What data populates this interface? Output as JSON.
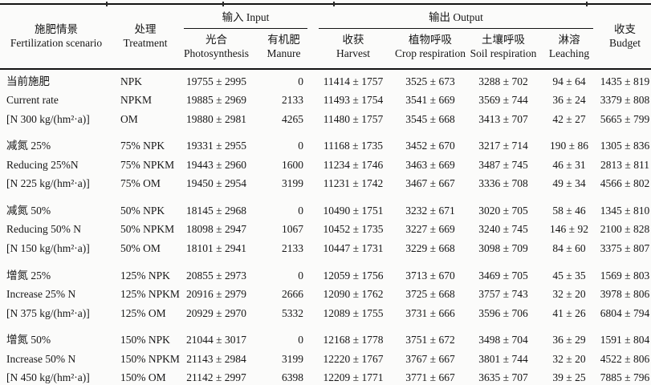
{
  "table": {
    "header": {
      "scenario": {
        "zh": "施肥情景",
        "en": "Fertilization scenario"
      },
      "treatment": {
        "zh": "处理",
        "en": "Treatment"
      },
      "input_group": "输入 Input",
      "output_group": "输出 Output",
      "budget": {
        "zh": "收支",
        "en": "Budget"
      },
      "subcolumns": [
        {
          "zh": "光合",
          "en": "Photosynthesis"
        },
        {
          "zh": "有机肥",
          "en": "Manure"
        },
        {
          "zh": "收获",
          "en": "Harvest"
        },
        {
          "zh": "植物呼吸",
          "en": "Crop respiration"
        },
        {
          "zh": "土壤呼吸",
          "en": "Soil respiration"
        },
        {
          "zh": "淋溶",
          "en": "Leaching"
        }
      ]
    },
    "groups": [
      {
        "scenario_lines": [
          "当前施肥",
          "Current rate",
          "[N 300 kg/(hm²·a)]"
        ],
        "rows": [
          {
            "treatment": "NPK",
            "photosynthesis": "19755 ± 2995",
            "manure": "0",
            "harvest": "11414 ± 1757",
            "crop_respiration": "3525 ± 673",
            "soil_respiration": "3288 ± 702",
            "leaching": "94 ± 64",
            "budget": "1435 ± 819"
          },
          {
            "treatment": "NPKM",
            "photosynthesis": "19885 ± 2969",
            "manure": "2133",
            "harvest": "11493 ± 1754",
            "crop_respiration": "3541 ± 669",
            "soil_respiration": "3569 ± 744",
            "leaching": "36 ± 24",
            "budget": "3379 ± 808"
          },
          {
            "treatment": "OM",
            "photosynthesis": "19880 ± 2981",
            "manure": "4265",
            "harvest": "11480 ± 1757",
            "crop_respiration": "3545 ± 668",
            "soil_respiration": "3413 ± 707",
            "leaching": "42 ± 27",
            "budget": "5665 ± 799"
          }
        ]
      },
      {
        "scenario_lines": [
          "减氮 25%",
          "Reducing 25%N",
          "[N 225 kg/(hm²·a)]"
        ],
        "rows": [
          {
            "treatment": "75% NPK",
            "photosynthesis": "19331 ± 2955",
            "manure": "0",
            "harvest": "11168 ± 1735",
            "crop_respiration": "3452 ± 670",
            "soil_respiration": "3217 ± 714",
            "leaching": "190 ± 86",
            "budget": "1305 ± 836"
          },
          {
            "treatment": "75% NPKM",
            "photosynthesis": "19443 ± 2960",
            "manure": "1600",
            "harvest": "11234 ± 1746",
            "crop_respiration": "3463 ± 669",
            "soil_respiration": "3487 ± 745",
            "leaching": "46 ± 31",
            "budget": "2813 ± 811"
          },
          {
            "treatment": "75% OM",
            "photosynthesis": "19450 ± 2954",
            "manure": "3199",
            "harvest": "11231 ± 1742",
            "crop_respiration": "3467 ± 667",
            "soil_respiration": "3336 ± 708",
            "leaching": "49 ± 34",
            "budget": "4566 ± 802"
          }
        ]
      },
      {
        "scenario_lines": [
          "减氮 50%",
          "Reducing 50% N",
          "[N 150 kg/(hm²·a)]"
        ],
        "rows": [
          {
            "treatment": "50% NPK",
            "photosynthesis": "18145 ± 2968",
            "manure": "0",
            "harvest": "10490 ± 1751",
            "crop_respiration": "3232 ± 671",
            "soil_respiration": "3020 ± 705",
            "leaching": "58 ± 46",
            "budget": "1345 ± 810"
          },
          {
            "treatment": "50% NPKM",
            "photosynthesis": "18098 ± 2947",
            "manure": "1067",
            "harvest": "10452 ± 1735",
            "crop_respiration": "3227 ± 669",
            "soil_respiration": "3240 ± 745",
            "leaching": "146 ± 92",
            "budget": "2100 ± 828"
          },
          {
            "treatment": "50% OM",
            "photosynthesis": "18101 ± 2941",
            "manure": "2133",
            "harvest": "10447 ± 1731",
            "crop_respiration": "3229 ± 668",
            "soil_respiration": "3098 ± 709",
            "leaching": "84 ± 60",
            "budget": "3375 ± 807"
          }
        ]
      },
      {
        "scenario_lines": [
          "增氮 25%",
          "Increase 25% N",
          "[N 375 kg/(hm²·a)]"
        ],
        "rows": [
          {
            "treatment": "125% NPK",
            "photosynthesis": "20855 ± 2973",
            "manure": "0",
            "harvest": "12059 ± 1756",
            "crop_respiration": "3713 ± 670",
            "soil_respiration": "3469 ± 705",
            "leaching": "45 ± 35",
            "budget": "1569 ± 803"
          },
          {
            "treatment": "125% NPKM",
            "photosynthesis": "20916 ± 2979",
            "manure": "2666",
            "harvest": "12090 ± 1762",
            "crop_respiration": "3725 ± 668",
            "soil_respiration": "3757 ± 743",
            "leaching": "32 ± 20",
            "budget": "3978 ± 806"
          },
          {
            "treatment": "125% OM",
            "photosynthesis": "20929 ± 2970",
            "manure": "5332",
            "harvest": "12089 ± 1755",
            "crop_respiration": "3731 ± 666",
            "soil_respiration": "3596 ± 706",
            "leaching": "41 ± 26",
            "budget": "6804 ± 794"
          }
        ]
      },
      {
        "scenario_lines": [
          "增氮 50%",
          "Increase 50% N",
          "[N 450 kg/(hm²·a)]"
        ],
        "rows": [
          {
            "treatment": "150% NPK",
            "photosynthesis": "21044 ± 3017",
            "manure": "0",
            "harvest": "12168 ± 1778",
            "crop_respiration": "3751 ± 672",
            "soil_respiration": "3498 ± 704",
            "leaching": "36 ± 29",
            "budget": "1591 ± 804"
          },
          {
            "treatment": "150% NPKM",
            "photosynthesis": "21143 ± 2984",
            "manure": "3199",
            "harvest": "12220 ± 1767",
            "crop_respiration": "3767 ± 667",
            "soil_respiration": "3801 ± 744",
            "leaching": "32 ± 20",
            "budget": "4522 ± 806"
          },
          {
            "treatment": "150% OM",
            "photosynthesis": "21142 ± 2997",
            "manure": "6398",
            "harvest": "12209 ± 1771",
            "crop_respiration": "3771 ± 667",
            "soil_respiration": "3635 ± 707",
            "leaching": "39 ± 25",
            "budget": "7885 ± 796"
          }
        ]
      }
    ],
    "colors": {
      "text": "#161616",
      "rule": "#131313",
      "background": "#fbfbfa"
    }
  }
}
